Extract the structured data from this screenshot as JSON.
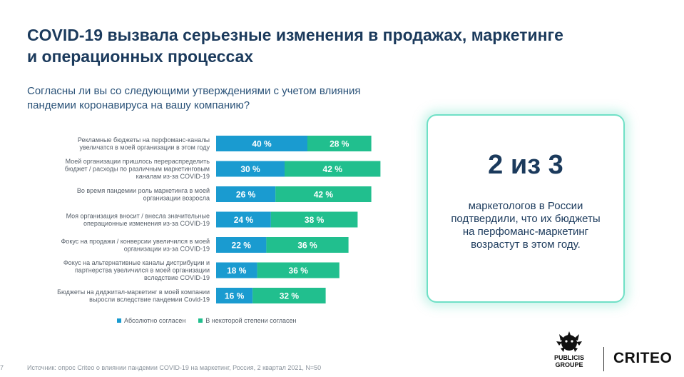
{
  "title": "COVID-19 вызвала серьезные изменения в продажах, маркетинге и операционных процессах",
  "question": "Согласны ли вы со следующими утверждениями с учетом влияния пандемии коронавируса на вашу компанию?",
  "colors": {
    "series1": "#1a9bd0",
    "series2": "#21bf8e",
    "title": "#1b3a5c",
    "callout_border": "#6fe0c6"
  },
  "chart_data": {
    "type": "bar",
    "orientation": "horizontal",
    "stacked": true,
    "categories": [
      [
        "Рекламные бюджеты на перфоманс-каналы",
        "увеличатся в моей организации в этом году"
      ],
      [
        "Моей организации пришлось перераспределить",
        "бюджет / расходы по различным маркетинговым",
        "каналам из-за COVID-19"
      ],
      [
        "Во время пандемии роль маркетинга в моей",
        "организации возросла"
      ],
      [
        "Моя организация вносит / внесла значительные",
        "операционные изменения из-за COVID-19"
      ],
      [
        "Фокус на продажи / конверсии увеличился в моей",
        "организации из-за COVID-19"
      ],
      [
        "Фокус на альтернативные каналы дистрибуции и",
        "партнерства увеличился в моей организации",
        "вследствие COVID-19"
      ],
      [
        "Бюджеты на диджитал-маркетинг в моей компании",
        "выросли вследствие пандемии  Covid-19"
      ]
    ],
    "series": [
      {
        "name": "Абсолютно согласен",
        "values": [
          40,
          30,
          26,
          24,
          22,
          18,
          16
        ],
        "labels": [
          "40 %",
          "30 %",
          "26 %",
          "24 %",
          "22 %",
          "18 %",
          "16 %"
        ]
      },
      {
        "name": "В  некоторой степени согласен",
        "values": [
          28,
          42,
          42,
          38,
          36,
          36,
          32
        ],
        "labels": [
          "28 %",
          "42 %",
          "42 %",
          "38 %",
          "36 %",
          "36 %",
          "32 %"
        ]
      }
    ],
    "legend": "bottom"
  },
  "callout": {
    "headline": "2 из 3",
    "text": "маркетологов в России подтвердили, что их бюджеты на перфоманс-маркетинг возрастут в этом году."
  },
  "page_number": "7",
  "source": "Источник: опрос Criteo о влиянии пандемии COVID-19 на маркетинг, Россия, 2 квартал 2021, N=50",
  "logos": {
    "publicis": [
      "PUBLICIS",
      "GROUPE"
    ],
    "criteo": "CRITEO"
  }
}
